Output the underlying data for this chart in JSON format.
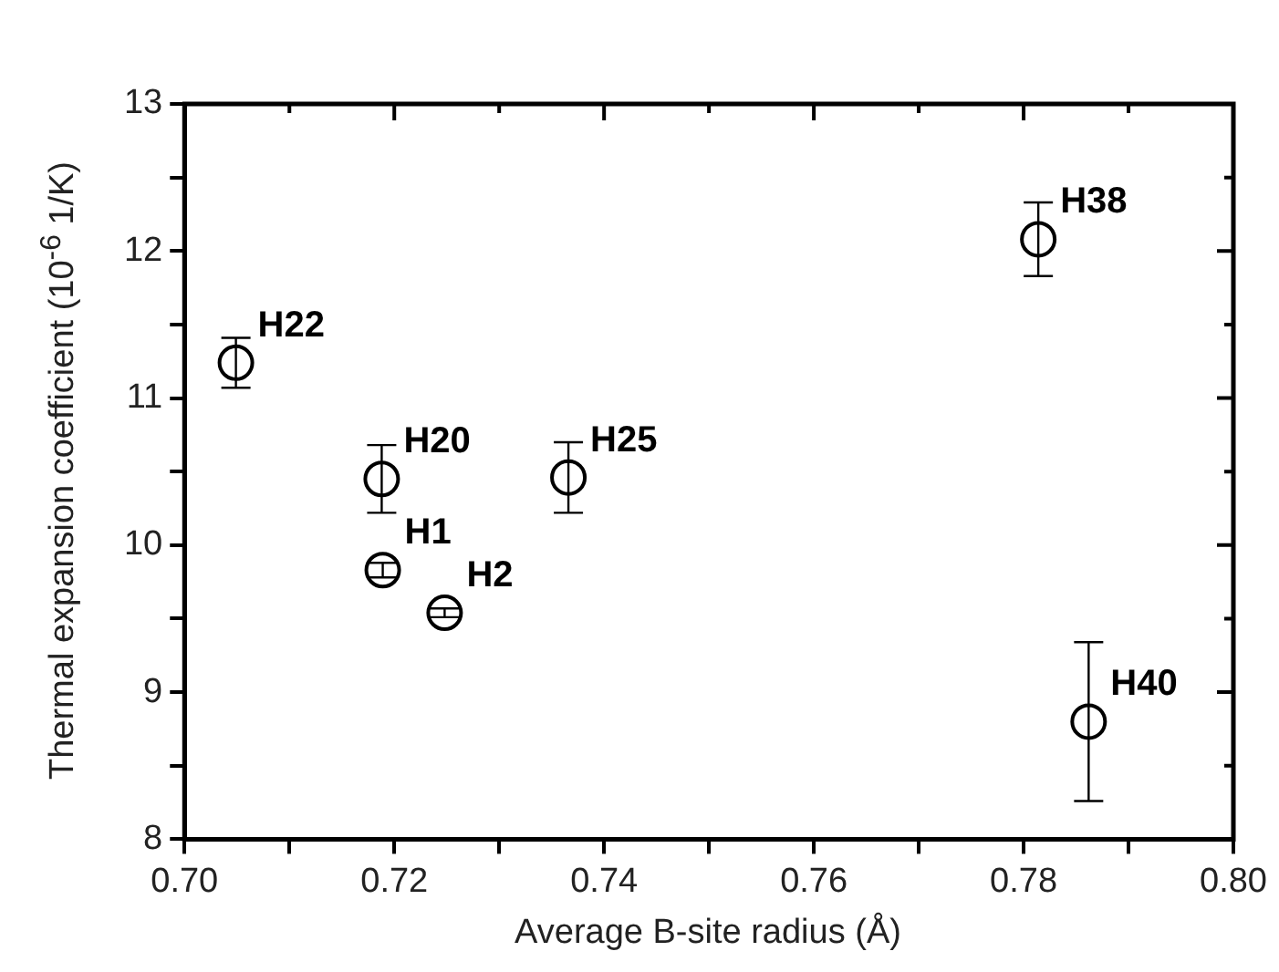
{
  "chart_data": {
    "type": "scatter",
    "xlabel": "Average B-site radius (Å)",
    "ylabel": "Thermal expansion coefficient (10$^{-6}$ 1/K)",
    "x": [
      0.7049,
      0.7188,
      0.7189,
      0.7248,
      0.7366,
      0.7814,
      0.7862
    ],
    "values": [
      11.24,
      10.45,
      9.83,
      9.54,
      10.46,
      12.08,
      8.8
    ],
    "errors": [
      0.17,
      0.23,
      0.05,
      0.03,
      0.24,
      0.25,
      0.54
    ],
    "color": "#000000",
    "marker": "circle",
    "grid": false,
    "legend": false,
    "xlim": [
      0.7,
      0.8
    ],
    "ylim": [
      8,
      13
    ],
    "xticks": [
      {
        "value": 0.7,
        "label": "0.70"
      },
      {
        "value": 0.71,
        "label": null
      },
      {
        "value": 0.72,
        "label": "0.72"
      },
      {
        "value": 0.73,
        "label": null
      },
      {
        "value": 0.74,
        "label": "0.74"
      },
      {
        "value": 0.75,
        "label": null
      },
      {
        "value": 0.76,
        "label": "0.76"
      },
      {
        "value": 0.77,
        "label": null
      },
      {
        "value": 0.78,
        "label": "0.78"
      },
      {
        "value": 0.79,
        "label": null
      },
      {
        "value": 0.8,
        "label": "0.80"
      }
    ],
    "yticks": [
      8,
      {
        "value": 8.5,
        "label": null
      },
      9,
      {
        "value": 9.5,
        "label": null
      },
      10,
      {
        "value": 10.5,
        "label": null
      },
      11,
      {
        "value": 11.5,
        "label": null
      },
      12,
      {
        "value": 12.5,
        "label": null
      },
      13
    ],
    "annotations": [
      {
        "text": "H22",
        "x": 0.7049,
        "y": 11.24
      },
      {
        "text": "H20",
        "x": 0.7188,
        "y": 10.45
      },
      {
        "text": "H1",
        "x": 0.7189,
        "y": 9.83
      },
      {
        "text": "H2",
        "x": 0.7248,
        "y": 9.54
      },
      {
        "text": "H25",
        "x": 0.7366,
        "y": 10.46
      },
      {
        "text": "H38",
        "x": 0.7814,
        "y": 12.08
      },
      {
        "text": "H40",
        "x": 0.7862,
        "y": 8.8
      }
    ]
  }
}
